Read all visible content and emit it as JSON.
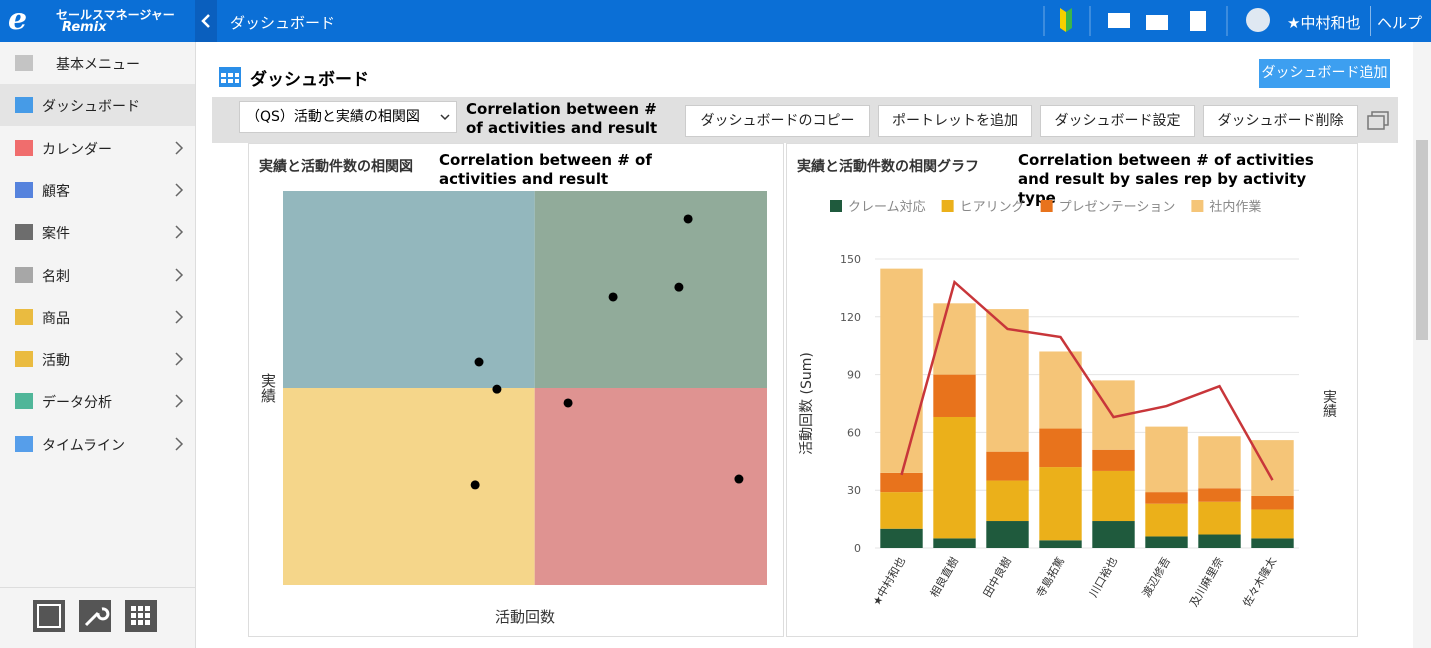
{
  "header": {
    "logo_mark": "e",
    "logo_line1": "セールスマネージャー",
    "logo_line2": "Remix",
    "page": "ダッシュボード",
    "user": "★中村和也",
    "help": "ヘルプ"
  },
  "sidebar": {
    "items": [
      "基本メニュー",
      "ダッシュボード",
      "カレンダー",
      "顧客",
      "案件",
      "名刺",
      "商品",
      "活動",
      "データ分析",
      "タイムライン"
    ]
  },
  "page": {
    "title": "ダッシュボード",
    "add_button": "ダッシュボード追加"
  },
  "toolbar": {
    "select": "（QS）活動と実績の相関図",
    "annotation": "Correlation between # of activities and result",
    "buttons": [
      "ダッシュボードのコピー",
      "ポートレットを追加",
      "ダッシュボード設定",
      "ダッシュボード削除"
    ]
  },
  "chart_data": [
    {
      "type": "scatter",
      "title": "実績と活動件数の相関図",
      "annotation": "Correlation between # of activities and result",
      "xlabel": "活動回数",
      "ylabel": "実績",
      "x": [
        83.7,
        81.8,
        68.2,
        40.5,
        44.2,
        58.9,
        39.7,
        94.2
      ],
      "y": [
        92.9,
        75.6,
        73.1,
        56.6,
        49.7,
        46.2,
        25.4,
        26.9
      ],
      "color": "#000000",
      "xlim": [
        0,
        100
      ],
      "ylim": [
        0,
        100
      ],
      "x_split": 52,
      "y_split": 50,
      "quadrant_colors": {
        "top_left": "#93b7bd",
        "top_right": "#91ab9a",
        "bottom_left": "#f5d68a",
        "bottom_right": "#df9391"
      }
    },
    {
      "type": "bar",
      "stacked": true,
      "title": "実績と活動件数の相関グラフ",
      "annotation": "Correlation between # of activities and result by sales rep by activity type",
      "ylabel": "活動回数 (Sum)",
      "y2label": "実績",
      "categories": [
        "★中村和也",
        "相良直樹",
        "田中良樹",
        "寺島拓篤",
        "川口裕也",
        "渡辺修吾",
        "及川麻里奈",
        "佐々木隆太"
      ],
      "series": [
        {
          "name": "クレーム対応",
          "color": "#1f5a3d",
          "values": [
            10,
            5,
            14,
            4,
            14,
            6,
            7,
            5
          ]
        },
        {
          "name": "ヒアリング",
          "color": "#ebb01a",
          "values": [
            19,
            63,
            21,
            38,
            26,
            17,
            17,
            15
          ]
        },
        {
          "name": "プレゼンテーション",
          "color": "#e8731c",
          "values": [
            10,
            22,
            15,
            20,
            11,
            6,
            7,
            7
          ]
        },
        {
          "name": "社内作業",
          "color": "#f5c578",
          "values": [
            106,
            37,
            74,
            40,
            36,
            34,
            27,
            29
          ]
        },
        {
          "type": "line",
          "axis": "y2",
          "color": "#c8363a",
          "values": [
            25.3,
            92,
            75.8,
            73,
            45.3,
            49.1,
            56,
            23.5
          ]
        }
      ],
      "ylim": [
        0,
        150
      ],
      "yticks": [
        0,
        30,
        60,
        90,
        120,
        150
      ],
      "y2lim": [
        0,
        100
      ],
      "grid": true,
      "legend": "top"
    }
  ]
}
